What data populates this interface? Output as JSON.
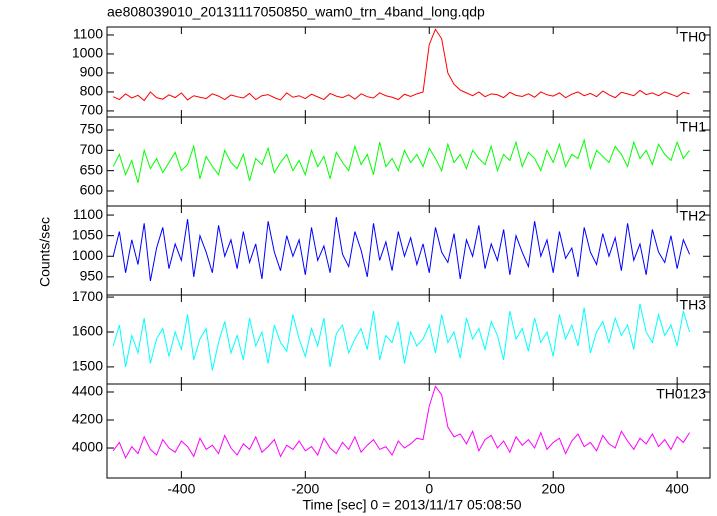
{
  "chart_data": [
    {
      "type": "line",
      "title": "ae808039010_20131117050850_wam0_trn_4band_long.qdp",
      "xlim": [
        -520,
        453
      ],
      "xticks": [
        -400,
        -200,
        0,
        200,
        400
      ],
      "ylim": [
        668,
        1142
      ],
      "yticks": [
        700,
        800,
        900,
        1000,
        1100
      ],
      "x": [
        -510,
        -500,
        -490,
        -480,
        -470,
        -460,
        -450,
        -440,
        -430,
        -420,
        -410,
        -400,
        -390,
        -380,
        -370,
        -360,
        -350,
        -340,
        -330,
        -320,
        -310,
        -300,
        -290,
        -280,
        -270,
        -260,
        -250,
        -240,
        -230,
        -220,
        -210,
        -200,
        -190,
        -180,
        -170,
        -160,
        -150,
        -140,
        -130,
        -120,
        -110,
        -100,
        -90,
        -80,
        -70,
        -60,
        -50,
        -40,
        -30,
        -20,
        -10,
        0,
        10,
        20,
        30,
        40,
        50,
        60,
        70,
        80,
        90,
        100,
        110,
        120,
        130,
        140,
        150,
        160,
        170,
        180,
        190,
        200,
        210,
        220,
        230,
        240,
        250,
        260,
        270,
        280,
        290,
        300,
        310,
        320,
        330,
        340,
        350,
        360,
        370,
        380,
        390,
        400,
        410,
        420
      ],
      "series": [
        {
          "name": "TH0",
          "color": "#ff0000",
          "values": [
            775,
            760,
            790,
            768,
            782,
            755,
            800,
            770,
            762,
            785,
            770,
            795,
            758,
            780,
            772,
            765,
            790,
            778,
            760,
            784,
            775,
            768,
            792,
            760,
            780,
            786,
            770,
            758,
            795,
            772,
            780,
            765,
            788,
            774,
            760,
            792,
            778,
            770,
            785,
            762,
            790,
            775,
            768,
            795,
            780,
            772,
            760,
            788,
            776,
            790,
            800,
            1050,
            1130,
            1080,
            900,
            840,
            810,
            795,
            780,
            800,
            775,
            790,
            785,
            770,
            798,
            782,
            776,
            790,
            772,
            800,
            785,
            778,
            795,
            770,
            788,
            800,
            780,
            792,
            775,
            805,
            785,
            770,
            798,
            790,
            780,
            808,
            786,
            795,
            780,
            800,
            788,
            775,
            798,
            790
          ]
        }
      ]
    },
    {
      "type": "line",
      "xlim": [
        -520,
        453
      ],
      "xticks": [
        -400,
        -200,
        0,
        200,
        400
      ],
      "ylim": [
        563,
        782
      ],
      "yticks": [
        600,
        650,
        700,
        750
      ],
      "x": [
        -510,
        -500,
        -490,
        -480,
        -470,
        -460,
        -450,
        -440,
        -430,
        -420,
        -410,
        -400,
        -390,
        -380,
        -370,
        -360,
        -350,
        -340,
        -330,
        -320,
        -310,
        -300,
        -290,
        -280,
        -270,
        -260,
        -250,
        -240,
        -230,
        -220,
        -210,
        -200,
        -190,
        -180,
        -170,
        -160,
        -150,
        -140,
        -130,
        -120,
        -110,
        -100,
        -90,
        -80,
        -70,
        -60,
        -50,
        -40,
        -30,
        -20,
        -10,
        0,
        10,
        20,
        30,
        40,
        50,
        60,
        70,
        80,
        90,
        100,
        110,
        120,
        130,
        140,
        150,
        160,
        170,
        180,
        190,
        200,
        210,
        220,
        230,
        240,
        250,
        260,
        270,
        280,
        290,
        300,
        310,
        320,
        330,
        340,
        350,
        360,
        370,
        380,
        390,
        400,
        410,
        420
      ],
      "series": [
        {
          "name": "TH1",
          "color": "#00ff00",
          "values": [
            660,
            690,
            640,
            675,
            620,
            700,
            655,
            680,
            645,
            670,
            695,
            650,
            665,
            710,
            630,
            685,
            660,
            640,
            700,
            670,
            655,
            690,
            625,
            680,
            665,
            705,
            645,
            670,
            690,
            650,
            675,
            640,
            700,
            660,
            685,
            630,
            695,
            670,
            650,
            710,
            665,
            690,
            640,
            720,
            660,
            680,
            650,
            700,
            670,
            690,
            660,
            705,
            680,
            650,
            715,
            670,
            690,
            655,
            700,
            680,
            665,
            710,
            650,
            690,
            675,
            720,
            660,
            695,
            680,
            650,
            700,
            670,
            715,
            660,
            690,
            680,
            725,
            655,
            700,
            685,
            670,
            710,
            690,
            660,
            720,
            680,
            700,
            665,
            715,
            690,
            675,
            720,
            680,
            700
          ]
        }
      ]
    },
    {
      "type": "line",
      "ylabel": "Counts/sec",
      "xlim": [
        -520,
        453
      ],
      "xticks": [
        -400,
        -200,
        0,
        200,
        400
      ],
      "ylim": [
        906,
        1122
      ],
      "yticks": [
        950,
        1000,
        1050,
        1100
      ],
      "x": [
        -510,
        -500,
        -490,
        -480,
        -470,
        -460,
        -450,
        -440,
        -430,
        -420,
        -410,
        -400,
        -390,
        -380,
        -370,
        -360,
        -350,
        -340,
        -330,
        -320,
        -310,
        -300,
        -290,
        -280,
        -270,
        -260,
        -250,
        -240,
        -230,
        -220,
        -210,
        -200,
        -190,
        -180,
        -170,
        -160,
        -150,
        -140,
        -130,
        -120,
        -110,
        -100,
        -90,
        -80,
        -70,
        -60,
        -50,
        -40,
        -30,
        -20,
        -10,
        0,
        10,
        20,
        30,
        40,
        50,
        60,
        70,
        80,
        90,
        100,
        110,
        120,
        130,
        140,
        150,
        160,
        170,
        180,
        190,
        200,
        210,
        220,
        230,
        240,
        250,
        260,
        270,
        280,
        290,
        300,
        310,
        320,
        330,
        340,
        350,
        360,
        370,
        380,
        390,
        400,
        410,
        420
      ],
      "series": [
        {
          "name": "TH2",
          "color": "#0000ff",
          "values": [
            1000,
            1060,
            960,
            1040,
            980,
            1080,
            940,
            1020,
            1070,
            970,
            1030,
            990,
            1090,
            950,
            1050,
            1010,
            960,
            1075,
            1000,
            1040,
            970,
            1060,
            985,
            1030,
            945,
            1085,
            1010,
            965,
            1050,
            1000,
            1040,
            955,
            1070,
            990,
            1025,
            960,
            1095,
            1005,
            975,
            1060,
            1015,
            950,
            1080,
            990,
            1035,
            965,
            1060,
            1000,
            1045,
            980,
            1030,
            960,
            1070,
            1010,
            985,
            1055,
            945,
            1040,
            1000,
            1075,
            970,
            1030,
            990,
            1065,
            955,
            1050,
            1010,
            975,
            1085,
            1000,
            1040,
            960,
            1060,
            995,
            1020,
            950,
            1070,
            1010,
            980,
            1055,
            1000,
            1045,
            965,
            1080,
            990,
            1030,
            955,
            1065,
            1010,
            985,
            1050,
            970,
            1040,
            1005
          ]
        }
      ]
    },
    {
      "type": "line",
      "xlim": [
        -520,
        453
      ],
      "xticks": [
        -400,
        -200,
        0,
        200,
        400
      ],
      "ylim": [
        1451,
        1706
      ],
      "yticks": [
        1500,
        1600,
        1700
      ],
      "x": [
        -510,
        -500,
        -490,
        -480,
        -470,
        -460,
        -450,
        -440,
        -430,
        -420,
        -410,
        -400,
        -390,
        -380,
        -370,
        -360,
        -350,
        -340,
        -330,
        -320,
        -310,
        -300,
        -290,
        -280,
        -270,
        -260,
        -250,
        -240,
        -230,
        -220,
        -210,
        -200,
        -190,
        -180,
        -170,
        -160,
        -150,
        -140,
        -130,
        -120,
        -110,
        -100,
        -90,
        -80,
        -70,
        -60,
        -50,
        -40,
        -30,
        -20,
        -10,
        0,
        10,
        20,
        30,
        40,
        50,
        60,
        70,
        80,
        90,
        100,
        110,
        120,
        130,
        140,
        150,
        160,
        170,
        180,
        190,
        200,
        210,
        220,
        230,
        240,
        250,
        260,
        270,
        280,
        290,
        300,
        310,
        320,
        330,
        340,
        350,
        360,
        370,
        380,
        390,
        400,
        410,
        420
      ],
      "series": [
        {
          "name": "TH3",
          "color": "#00ffff",
          "values": [
            1560,
            1620,
            1500,
            1590,
            1540,
            1640,
            1510,
            1580,
            1610,
            1530,
            1600,
            1550,
            1650,
            1520,
            1580,
            1610,
            1490,
            1570,
            1630,
            1540,
            1590,
            1520,
            1640,
            1560,
            1600,
            1510,
            1620,
            1570,
            1545,
            1650,
            1580,
            1530,
            1610,
            1560,
            1640,
            1500,
            1595,
            1620,
            1540,
            1580,
            1610,
            1550,
            1660,
            1520,
            1590,
            1570,
            1630,
            1510,
            1600,
            1560,
            1580,
            1620,
            1540,
            1650,
            1570,
            1600,
            1525,
            1640,
            1580,
            1610,
            1550,
            1630,
            1590,
            1520,
            1660,
            1580,
            1610,
            1545,
            1640,
            1570,
            1600,
            1530,
            1650,
            1580,
            1620,
            1560,
            1670,
            1540,
            1600,
            1630,
            1570,
            1640,
            1590,
            1620,
            1550,
            1680,
            1600,
            1570,
            1650,
            1590,
            1620,
            1560,
            1660,
            1600
          ]
        }
      ]
    },
    {
      "type": "line",
      "xlabel": "Time [sec] 0 = 2013/11/17 05:08:50",
      "xlim": [
        -520,
        453
      ],
      "xticks": [
        -400,
        -200,
        0,
        200,
        400
      ],
      "ylim": [
        3786,
        4457
      ],
      "yticks": [
        4000,
        4200,
        4400
      ],
      "x": [
        -510,
        -500,
        -490,
        -480,
        -470,
        -460,
        -450,
        -440,
        -430,
        -420,
        -410,
        -400,
        -390,
        -380,
        -370,
        -360,
        -350,
        -340,
        -330,
        -320,
        -310,
        -300,
        -290,
        -280,
        -270,
        -260,
        -250,
        -240,
        -230,
        -220,
        -210,
        -200,
        -190,
        -180,
        -170,
        -160,
        -150,
        -140,
        -130,
        -120,
        -110,
        -100,
        -90,
        -80,
        -70,
        -60,
        -50,
        -40,
        -30,
        -20,
        -10,
        0,
        10,
        20,
        30,
        40,
        50,
        60,
        70,
        80,
        90,
        100,
        110,
        120,
        130,
        140,
        150,
        160,
        170,
        180,
        190,
        200,
        210,
        220,
        230,
        240,
        250,
        260,
        270,
        280,
        290,
        300,
        310,
        320,
        330,
        340,
        350,
        360,
        370,
        380,
        390,
        400,
        410,
        420
      ],
      "series": [
        {
          "name": "TH0123",
          "color": "#ff00ff",
          "values": [
            3980,
            4040,
            3930,
            4010,
            3960,
            4080,
            3990,
            3950,
            4060,
            4000,
            3970,
            4050,
            4010,
            3940,
            4070,
            3990,
            4020,
            3960,
            4090,
            4000,
            3950,
            4030,
            3990,
            4080,
            3970,
            4010,
            4060,
            3940,
            4020,
            3990,
            4050,
            3980,
            4010,
            3950,
            4070,
            4000,
            3960,
            4040,
            3990,
            4080,
            3970,
            4020,
            4060,
            3990,
            4010,
            3950,
            4050,
            4000,
            4030,
            4070,
            4060,
            4300,
            4440,
            4380,
            4150,
            4080,
            4100,
            4030,
            4120,
            3980,
            4060,
            4090,
            4000,
            4050,
            3970,
            4080,
            4020,
            4060,
            4000,
            4110,
            3990,
            4040,
            4070,
            3960,
            4050,
            4100,
            4010,
            4040,
            3980,
            4090,
            4030,
            4000,
            4120,
            4050,
            3990,
            4070,
            4030,
            4100,
            4010,
            4060,
            3990,
            4080,
            4040,
            4110
          ]
        }
      ]
    }
  ]
}
